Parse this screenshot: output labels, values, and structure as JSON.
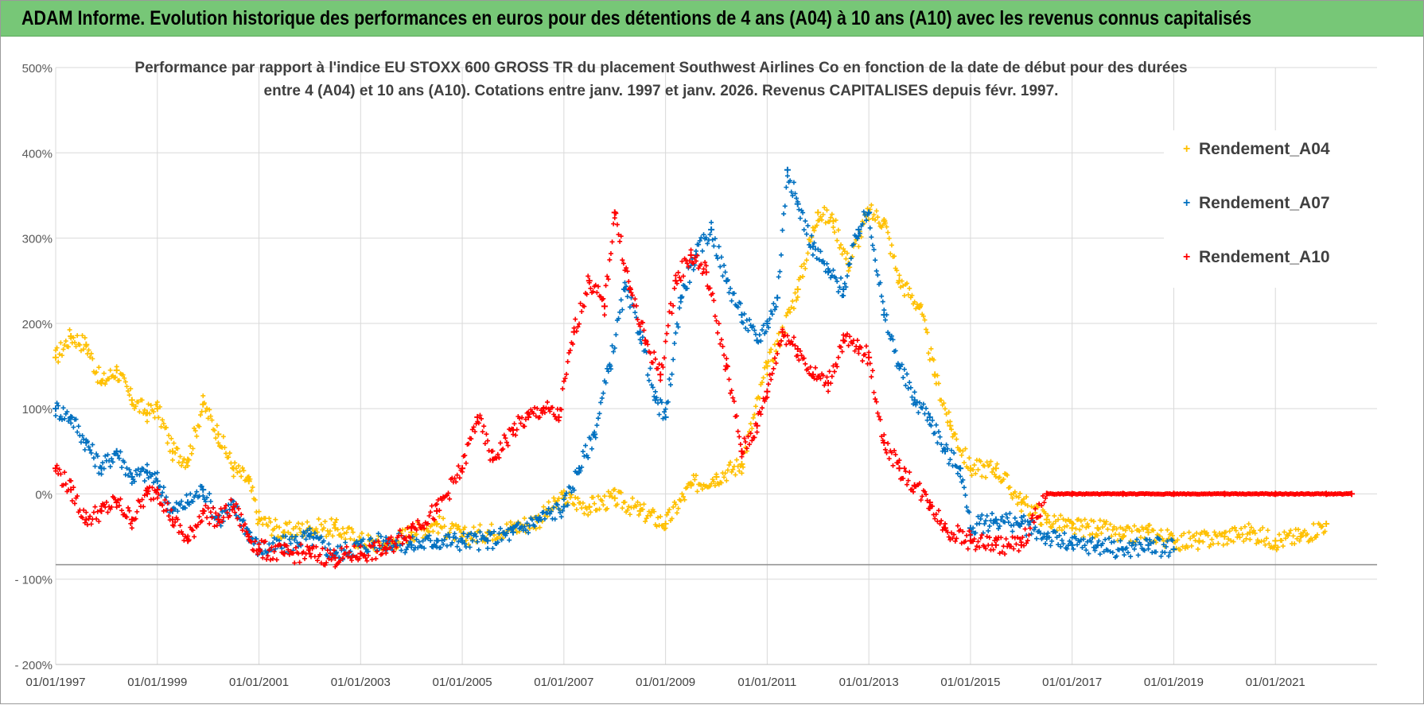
{
  "header": {
    "title": "ADAM Informe. Evolution historique des performances en euros pour des détentions de 4 ans (A04) à 10 ans (A10) avec les revenus connus capitalisés"
  },
  "chart_data": {
    "type": "scatter",
    "title_line1": "Performance par rapport à l'indice EU STOXX 600 GROSS TR  du placement Southwest Airlines Co en fonction de la date de début pour des durées",
    "title_line2": "entre 4 (A04) et 10 ans (A10).  Cotations entre janv. 1997 et janv. 2026. Revenus CAPITALISES depuis févr. 1997.",
    "ylim": [
      -200,
      500
    ],
    "xlim": [
      1997.0,
      2023.0
    ],
    "y_ticks": [
      -200,
      -100,
      0,
      100,
      200,
      300,
      400,
      500
    ],
    "y_tick_labels": [
      "- 200%",
      "- 100%",
      "0%",
      "100%",
      "200%",
      "300%",
      "400%",
      "500%"
    ],
    "x_ticks": [
      1997,
      1999,
      2001,
      2003,
      2005,
      2007,
      2009,
      2011,
      2013,
      2015,
      2017,
      2019,
      2021
    ],
    "x_tick_labels": [
      "01/01/1997",
      "01/01/1999",
      "01/01/2001",
      "01/01/2003",
      "01/01/2005",
      "01/01/2007",
      "01/01/2009",
      "01/01/2011",
      "01/01/2013",
      "01/01/2015",
      "01/01/2017",
      "01/01/2019",
      "01/01/2021"
    ],
    "reference_line": -83,
    "legend_position": "right",
    "series": [
      {
        "name": "Rendement_A04",
        "color": "#ffc000",
        "x": [
          1997.0,
          1997.3,
          1997.6,
          1997.9,
          1998.2,
          1998.5,
          1998.8,
          1999.0,
          1999.3,
          1999.6,
          1999.9,
          2000.2,
          2000.5,
          2000.8,
          2001.0,
          2001.5,
          2002.0,
          2002.5,
          2003.0,
          2003.5,
          2004.0,
          2004.5,
          2005.0,
          2005.5,
          2006.0,
          2006.5,
          2007.0,
          2007.5,
          2008.0,
          2008.5,
          2009.0,
          2009.5,
          2010.0,
          2010.5,
          2011.0,
          2011.3,
          2011.6,
          2012.0,
          2012.3,
          2012.6,
          2013.0,
          2013.3,
          2013.6,
          2014.0,
          2014.3,
          2014.6,
          2015.0,
          2015.5,
          2016.0,
          2016.5,
          2017.0,
          2017.5,
          2018.0,
          2018.5,
          2019.0,
          2019.5,
          2020.0,
          2020.5,
          2021.0,
          2021.5,
          2022.0
        ],
        "y": [
          160,
          185,
          175,
          130,
          145,
          110,
          95,
          100,
          50,
          40,
          105,
          70,
          30,
          15,
          -30,
          -45,
          -40,
          -40,
          -55,
          -60,
          -45,
          -35,
          -50,
          -45,
          -40,
          -30,
          -5,
          -15,
          -5,
          -20,
          -35,
          10,
          20,
          35,
          150,
          190,
          240,
          330,
          320,
          270,
          330,
          320,
          250,
          220,
          140,
          80,
          30,
          30,
          -10,
          -30,
          -40,
          -40,
          -50,
          -45,
          -55,
          -55,
          -50,
          -45,
          -55,
          -50,
          -35
        ]
      },
      {
        "name": "Rendement_A07",
        "color": "#0070c0",
        "x": [
          1997.0,
          1997.3,
          1997.6,
          1997.9,
          1998.2,
          1998.5,
          1998.8,
          1999.0,
          1999.3,
          1999.6,
          1999.9,
          2000.2,
          2000.5,
          2000.8,
          2001.0,
          2001.5,
          2002.0,
          2002.5,
          2003.0,
          2003.5,
          2004.0,
          2004.5,
          2005.0,
          2005.5,
          2006.0,
          2006.5,
          2007.0,
          2007.3,
          2007.6,
          2007.9,
          2008.2,
          2008.5,
          2008.8,
          2009.0,
          2009.3,
          2009.6,
          2009.9,
          2010.2,
          2010.5,
          2010.8,
          2011.0,
          2011.2,
          2011.4,
          2011.6,
          2011.9,
          2012.2,
          2012.5,
          2012.8,
          2013.0,
          2013.3,
          2013.6,
          2013.9,
          2014.2,
          2014.5,
          2014.8,
          2015.0,
          2015.5,
          2016.0,
          2016.5,
          2017.0,
          2017.5,
          2018.0,
          2018.5,
          2019.0
        ],
        "y": [
          100,
          90,
          60,
          30,
          50,
          20,
          25,
          15,
          -20,
          -10,
          5,
          -30,
          -15,
          -45,
          -65,
          -60,
          -50,
          -70,
          -60,
          -55,
          -60,
          -55,
          -55,
          -55,
          -45,
          -30,
          -15,
          30,
          70,
          150,
          240,
          190,
          110,
          90,
          230,
          280,
          310,
          250,
          210,
          180,
          200,
          230,
          380,
          340,
          290,
          260,
          240,
          310,
          330,
          210,
          150,
          110,
          90,
          50,
          30,
          -40,
          -30,
          -35,
          -50,
          -60,
          -60,
          -65,
          -60,
          -65
        ]
      },
      {
        "name": "Rendement_A10",
        "color": "#ff0000",
        "x": [
          1997.0,
          1997.3,
          1997.6,
          1997.9,
          1998.2,
          1998.5,
          1998.8,
          1999.0,
          1999.3,
          1999.6,
          1999.9,
          2000.2,
          2000.5,
          2000.8,
          2001.0,
          2001.5,
          2002.0,
          2002.5,
          2003.0,
          2003.5,
          2004.0,
          2004.5,
          2005.0,
          2005.3,
          2005.6,
          2006.0,
          2006.3,
          2006.6,
          2006.9,
          2007.2,
          2007.5,
          2007.8,
          2008.0,
          2008.3,
          2008.6,
          2008.9,
          2009.2,
          2009.5,
          2009.8,
          2010.2,
          2010.5,
          2010.8,
          2011.0,
          2011.3,
          2011.6,
          2011.9,
          2012.2,
          2012.5,
          2012.8,
          2013.0,
          2013.3,
          2013.6,
          2013.9,
          2014.2,
          2014.5,
          2015.0,
          2015.5,
          2016.0,
          2016.5,
          2017.0,
          2018.0,
          2019.0,
          2020.0,
          2021.0,
          2022.0,
          2022.5
        ],
        "y": [
          30,
          5,
          -30,
          -20,
          -10,
          -30,
          0,
          5,
          -30,
          -55,
          -20,
          -30,
          -15,
          -50,
          -65,
          -70,
          -70,
          -75,
          -70,
          -65,
          -40,
          -20,
          30,
          90,
          40,
          75,
          90,
          100,
          90,
          190,
          250,
          220,
          330,
          240,
          180,
          140,
          250,
          280,
          260,
          150,
          50,
          80,
          120,
          190,
          170,
          140,
          130,
          180,
          170,
          160,
          60,
          30,
          10,
          -10,
          -40,
          -55,
          -60,
          -60,
          0,
          0,
          0,
          0,
          0,
          0,
          0,
          0
        ]
      }
    ]
  }
}
